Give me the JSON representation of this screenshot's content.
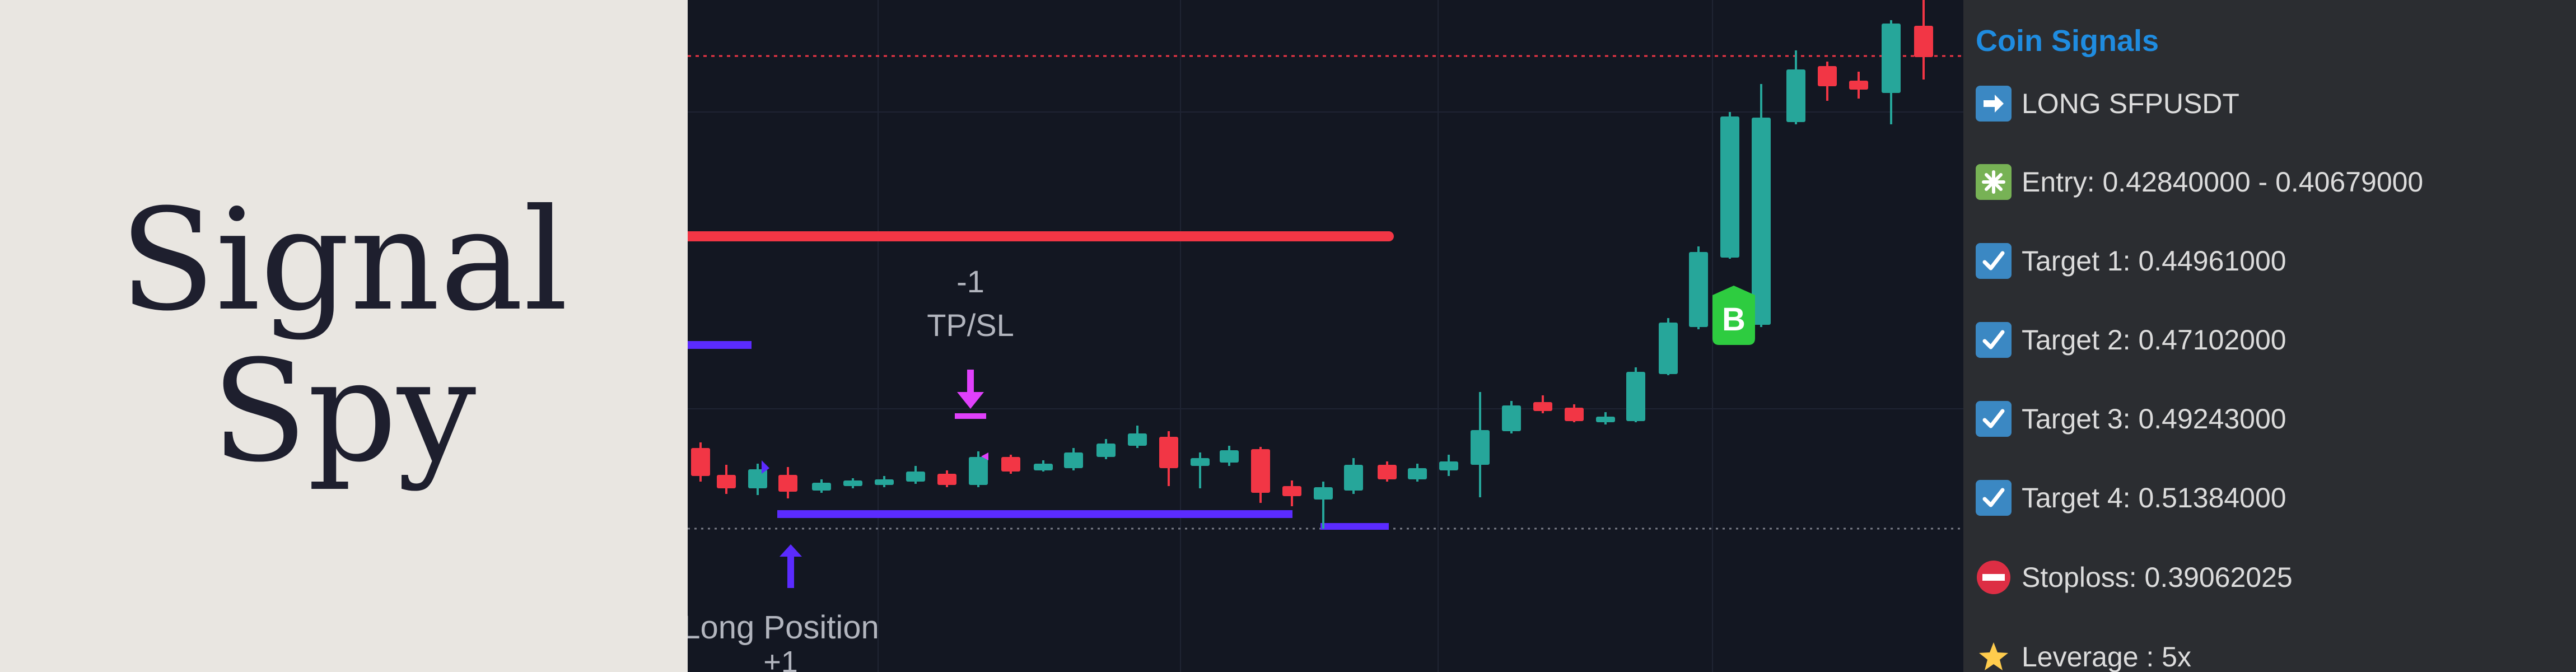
{
  "brand": {
    "line1": "Signal",
    "line2": "Spy"
  },
  "chart": {
    "annotation_tp": "-1",
    "annotation_tp_label": "TP/SL",
    "position_label": "Long Position",
    "position_qty": "+1",
    "badge": "B",
    "colors": {
      "up": "#26a69a",
      "down": "#f23645",
      "purple": "#5b2bff",
      "magenta": "#e040fb",
      "badge": "#2ecc40"
    }
  },
  "signals": {
    "title": "Coin Signals",
    "items": [
      {
        "icon": "right-arrow-icon",
        "text": "LONG SFPUSDT"
      },
      {
        "icon": "sparkle-icon",
        "text": "Entry: 0.42840000 - 0.40679000"
      },
      {
        "icon": "check-icon",
        "text": "Target 1: 0.44961000"
      },
      {
        "icon": "check-icon",
        "text": "Target 2: 0.47102000"
      },
      {
        "icon": "check-icon",
        "text": "Target 3: 0.49243000"
      },
      {
        "icon": "check-icon",
        "text": "Target 4: 0.51384000"
      },
      {
        "icon": "no-entry-icon",
        "text": "Stoploss: 0.39062025"
      },
      {
        "icon": "star-icon",
        "text": "Leverage : 5x"
      }
    ]
  }
}
